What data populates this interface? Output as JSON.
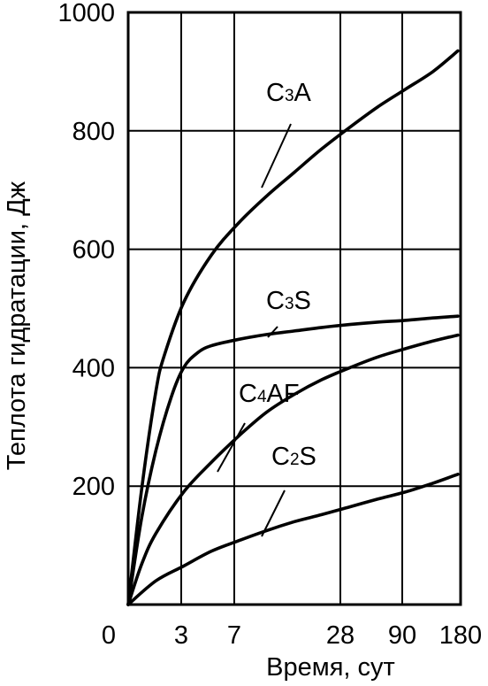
{
  "chart_data": {
    "type": "line",
    "title": "",
    "xlabel": "Время, сут",
    "ylabel": "Теплота гидратации, Дж",
    "ylim": [
      0,
      1000
    ],
    "grid": true,
    "x_ticks": [
      "0",
      "3",
      "7",
      "28",
      "90",
      "180"
    ],
    "y_ticks": [
      200,
      400,
      600,
      800,
      1000
    ],
    "series": [
      {
        "name": "C3A",
        "label_main": "C",
        "label_sub": "3",
        "label_rest": "A",
        "points": [
          [
            0,
            0
          ],
          [
            0.5,
            200
          ],
          [
            1,
            360
          ],
          [
            1.3,
            420
          ],
          [
            2,
            510
          ],
          [
            3,
            590
          ],
          [
            4,
            645
          ],
          [
            5,
            690
          ],
          [
            6,
            730
          ],
          [
            7,
            770
          ],
          [
            8,
            806
          ],
          [
            9,
            840
          ],
          [
            10,
            870
          ],
          [
            11,
            900
          ],
          [
            11.9,
            935
          ]
        ]
      },
      {
        "name": "C3S",
        "label_main": "C",
        "label_sub": "3",
        "label_rest": "S",
        "points": [
          [
            0,
            0
          ],
          [
            0.5,
            150
          ],
          [
            1,
            260
          ],
          [
            1.55,
            350
          ],
          [
            2,
            400
          ],
          [
            2.5,
            425
          ],
          [
            3,
            437
          ],
          [
            4,
            448
          ],
          [
            5,
            456
          ],
          [
            6,
            462
          ],
          [
            7,
            468
          ],
          [
            8,
            473
          ],
          [
            9,
            477
          ],
          [
            10,
            480
          ],
          [
            11,
            484
          ],
          [
            11.9,
            487
          ]
        ]
      },
      {
        "name": "C4AF",
        "label_main": "C",
        "label_sub": "4",
        "label_rest": "AF",
        "points": [
          [
            0,
            0
          ],
          [
            0.5,
            70
          ],
          [
            1,
            120
          ],
          [
            2,
            190
          ],
          [
            3,
            240
          ],
          [
            4,
            285
          ],
          [
            5,
            325
          ],
          [
            6,
            355
          ],
          [
            7,
            380
          ],
          [
            8,
            400
          ],
          [
            9,
            418
          ],
          [
            10,
            432
          ],
          [
            11,
            445
          ],
          [
            11.9,
            455
          ]
        ]
      },
      {
        "name": "C2S",
        "label_main": "C",
        "label_sub": "2",
        "label_rest": "S",
        "points": [
          [
            0,
            0
          ],
          [
            1,
            40
          ],
          [
            2,
            65
          ],
          [
            3,
            90
          ],
          [
            4,
            108
          ],
          [
            5,
            125
          ],
          [
            6,
            140
          ],
          [
            7,
            152
          ],
          [
            8,
            165
          ],
          [
            9,
            178
          ],
          [
            10,
            190
          ],
          [
            11,
            205
          ],
          [
            11.9,
            220
          ]
        ]
      }
    ]
  }
}
